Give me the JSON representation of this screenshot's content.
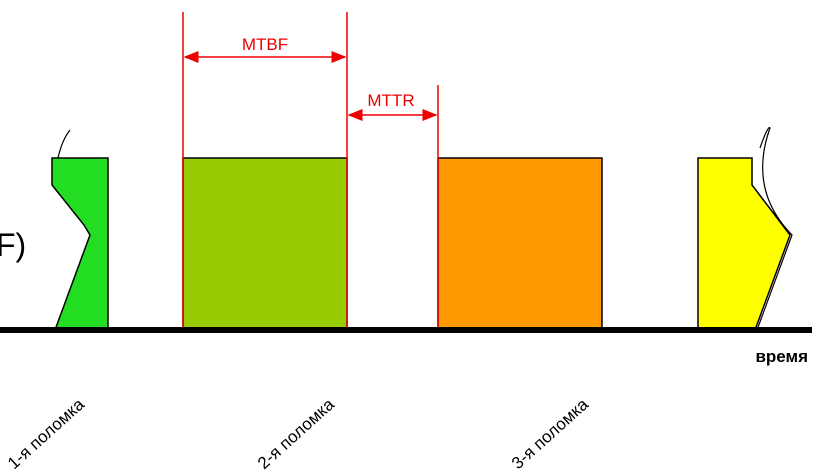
{
  "labels": {
    "side": "F)",
    "mtbf": "MTBF",
    "mttr": "MTTR",
    "time": "время"
  },
  "failures": [
    "1-я поломка",
    "2-я поломка",
    "3-я поломка"
  ]
}
